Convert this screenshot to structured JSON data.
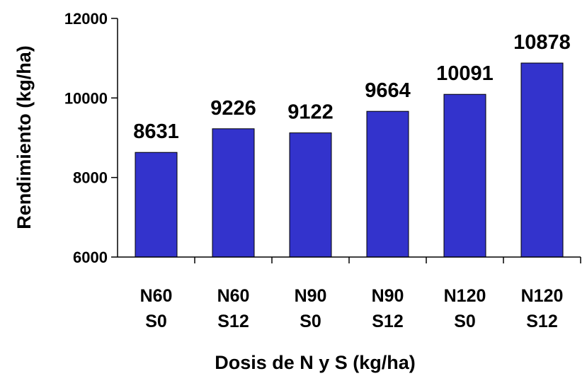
{
  "chart_data": {
    "type": "bar",
    "categories": [
      [
        "N60",
        "S0"
      ],
      [
        "N60",
        "S12"
      ],
      [
        "N90",
        "S0"
      ],
      [
        "N90",
        "S12"
      ],
      [
        "N120",
        "S0"
      ],
      [
        "N120",
        "S12"
      ]
    ],
    "values": [
      8631,
      9226,
      9122,
      9664,
      10091,
      10878
    ],
    "data_labels": [
      "8631",
      "9226",
      "9122",
      "9664",
      "10091",
      "10878"
    ],
    "xlabel": "Dosis de N y S (kg/ha)",
    "ylabel": "Rendimiento (kg/ha)",
    "ylim": [
      6000,
      12000
    ],
    "yticks": [
      "6000",
      "8000",
      "10000",
      "12000"
    ],
    "grid": false,
    "bar_color": "#3333cc",
    "bar_edge_color": "#000000"
  }
}
